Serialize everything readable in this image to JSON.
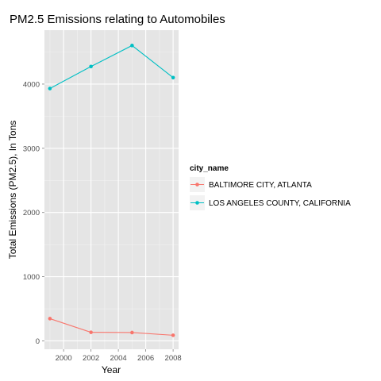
{
  "chart_data": {
    "type": "line",
    "title": "PM2.5 Emissions relating to Automobiles",
    "xlabel": "Year",
    "ylabel": "Total Emissions (PM2.5), In Tons",
    "x": [
      1999,
      2002,
      2005,
      2008
    ],
    "xlim": [
      1998.6,
      2008.4
    ],
    "ylim": [
      -130,
      4840
    ],
    "x_ticks": [
      2000,
      2002,
      2004,
      2006,
      2008
    ],
    "y_ticks": [
      0,
      1000,
      2000,
      3000,
      4000
    ],
    "grid": true,
    "legend_title": "city_name",
    "legend_position": "right",
    "series": [
      {
        "name": "BALTIMORE CITY, ATLANTA",
        "color": "#F8766D",
        "values": [
          347,
          134,
          130,
          88
        ]
      },
      {
        "name": "LOS ANGELES COUNTY, CALIFORNIA",
        "color": "#00BFC4",
        "values": [
          3931,
          4274,
          4601,
          4101
        ]
      }
    ]
  }
}
